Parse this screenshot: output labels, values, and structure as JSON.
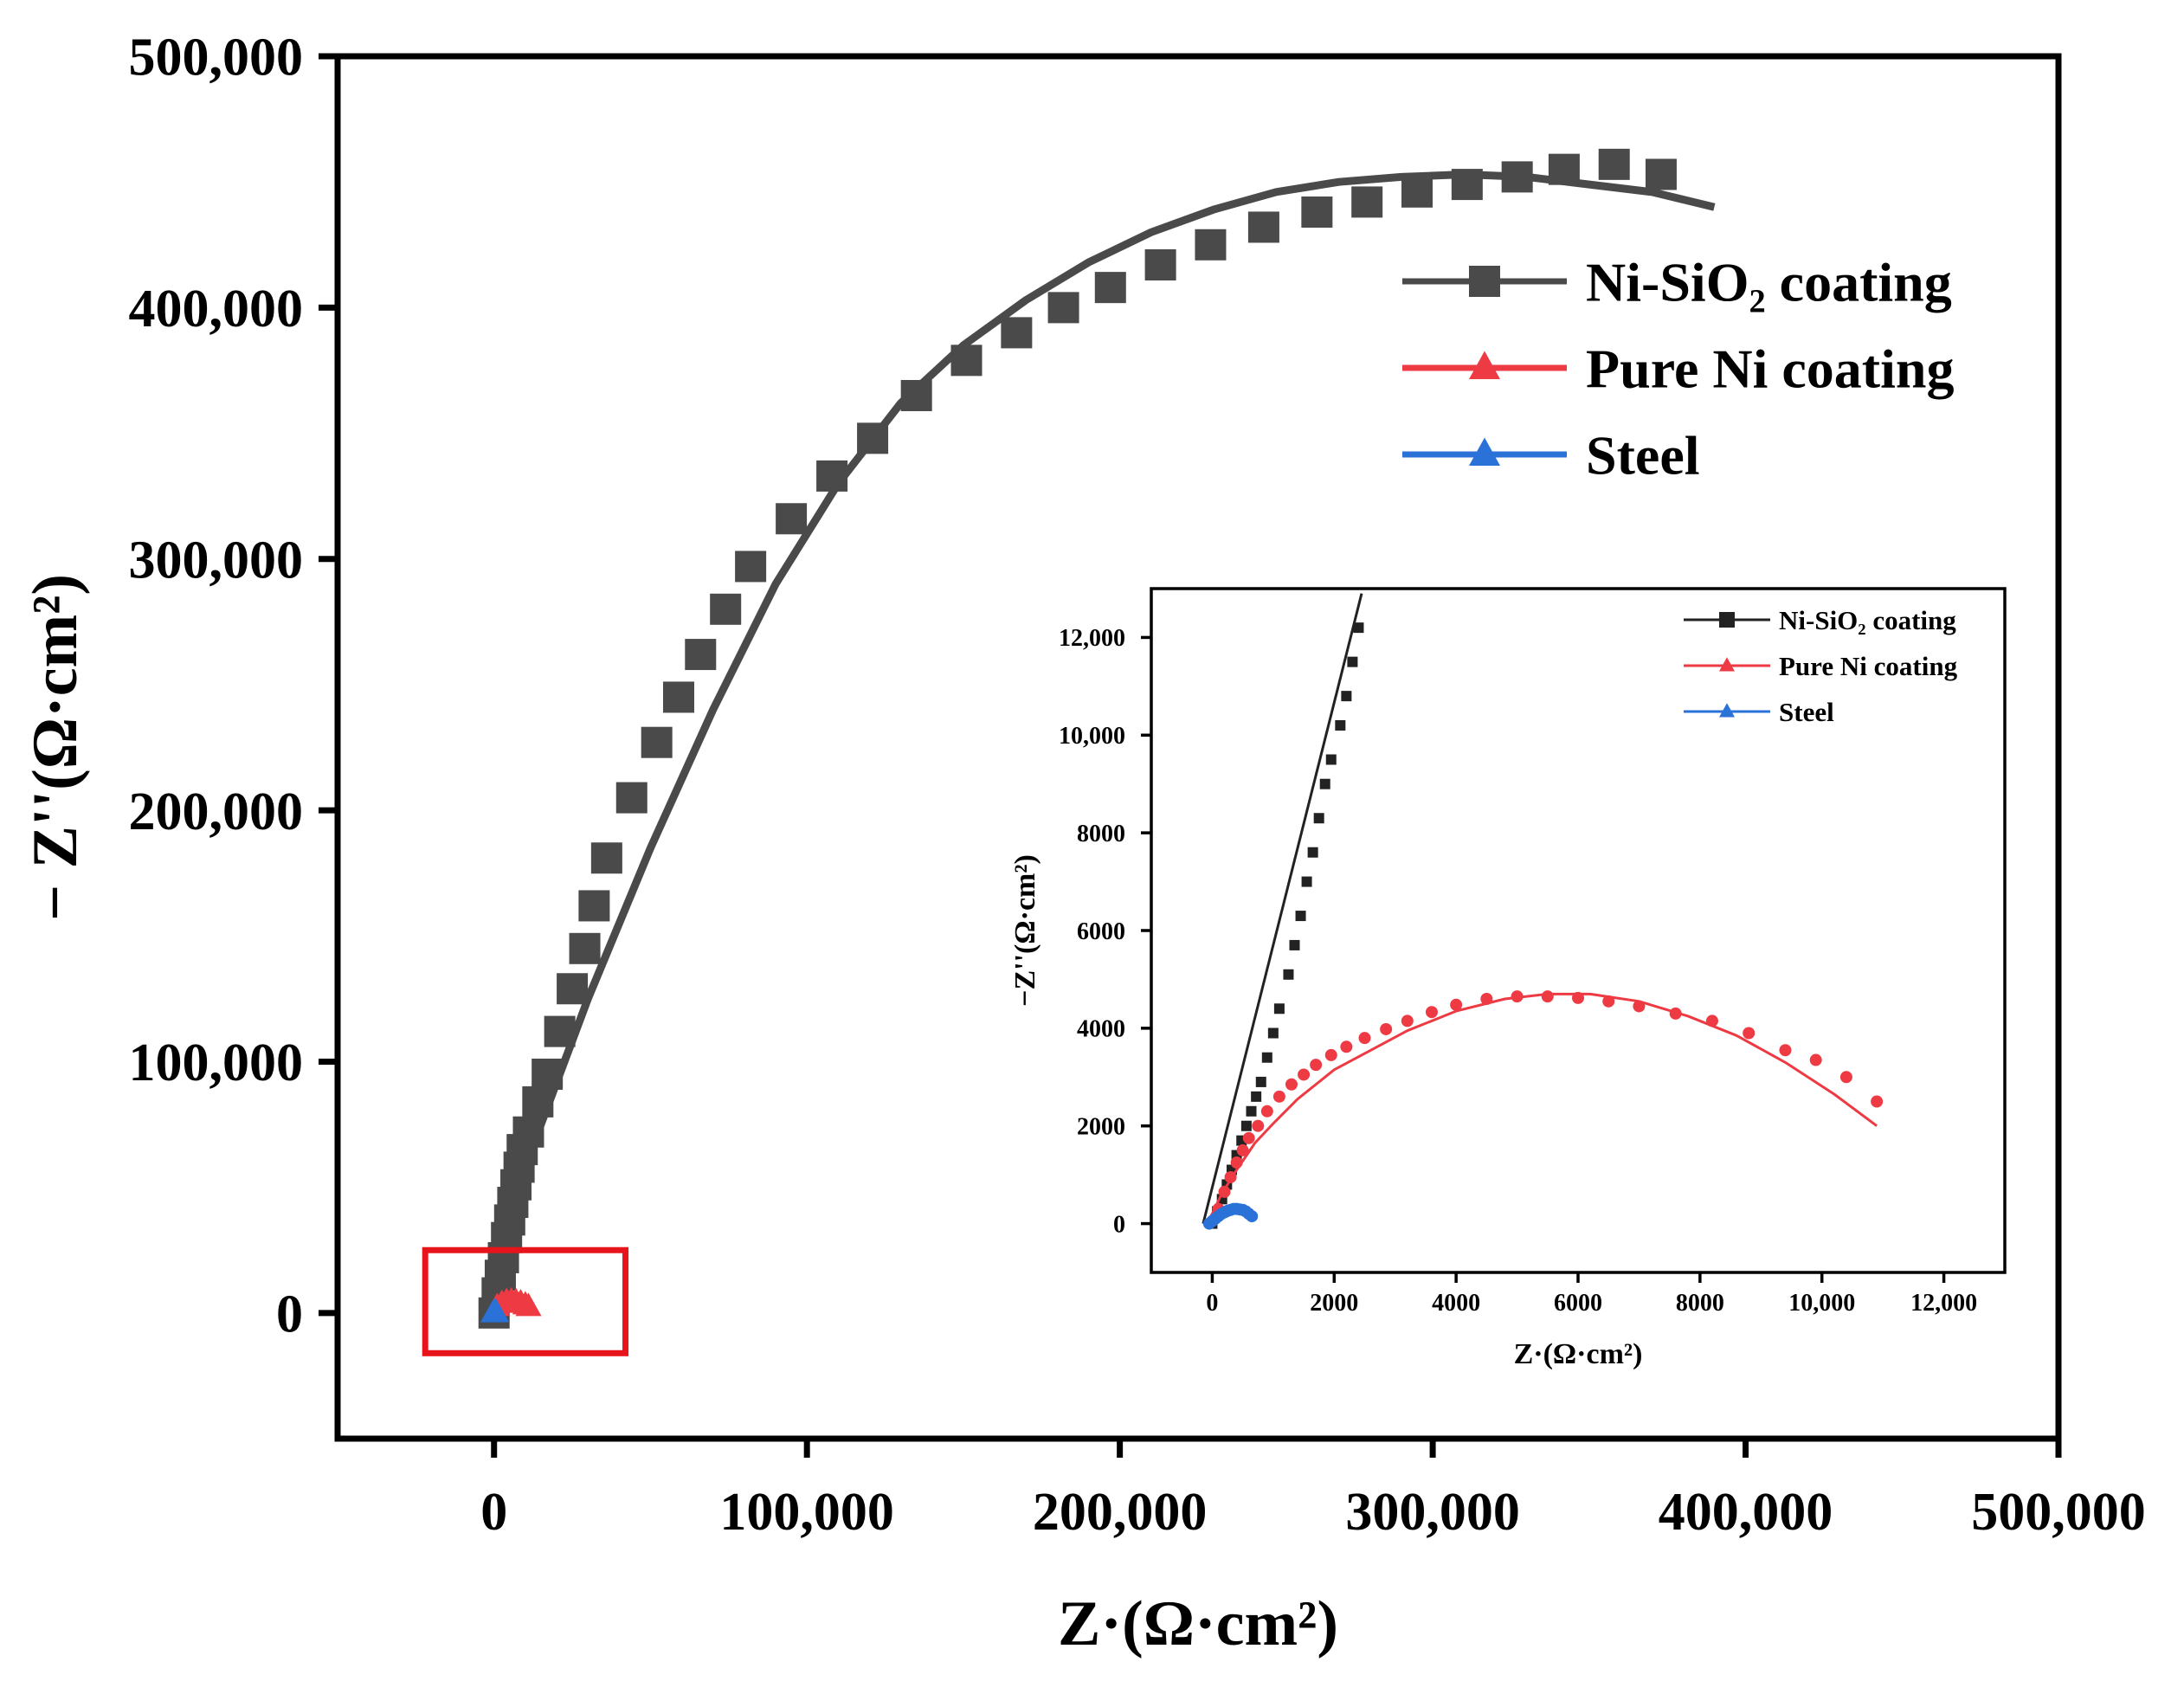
{
  "colors": {
    "ni_sio2": "#4a4a4a",
    "ni_sio2_inset": "#222222",
    "pure_ni": "#ee3a43",
    "steel": "#2a72d8",
    "zoom_box": "#e8141c",
    "axis": "#000000"
  },
  "chart_data": [
    {
      "id": "main",
      "type": "scatter",
      "xlabel": "Z·(Ω·cm²)",
      "ylabel": "− Z''(Ω·cm²)",
      "xlim": [
        -50000,
        500000
      ],
      "ylim": [
        -50000,
        500000
      ],
      "xticks": [
        0,
        100000,
        200000,
        300000,
        400000,
        500000
      ],
      "xtick_labels": [
        "0",
        "100,000",
        "200,000",
        "300,000",
        "400,000",
        "500,000"
      ],
      "yticks": [
        0,
        100000,
        200000,
        300000,
        400000,
        500000
      ],
      "ytick_labels": [
        "0",
        "100,000",
        "200,000",
        "300,000",
        "400,000",
        "500,000"
      ],
      "legend_position": "top-right",
      "zoom_box": {
        "x": [
          -22000,
          42000
        ],
        "y": [
          -16000,
          25000
        ]
      },
      "series": [
        {
          "name": "Ni-SiO₂ coating",
          "marker": "square",
          "color_key": "ni_sio2",
          "points": [
            [
              0,
              0
            ],
            [
              1000,
              8000
            ],
            [
              2000,
              15000
            ],
            [
              3000,
              22000
            ],
            [
              4000,
              30000
            ],
            [
              5000,
              37000
            ],
            [
              6000,
              44000
            ],
            [
              7000,
              51000
            ],
            [
              8000,
              58000
            ],
            [
              9000,
              65000
            ],
            [
              11000,
              72000
            ],
            [
              14000,
              84000
            ],
            [
              17000,
              95000
            ],
            [
              21000,
              112000
            ],
            [
              25000,
              129000
            ],
            [
              29000,
              145000
            ],
            [
              32000,
              162000
            ],
            [
              36000,
              181000
            ],
            [
              44000,
              205000
            ],
            [
              52000,
              227000
            ],
            [
              59000,
              245000
            ],
            [
              66000,
              262000
            ],
            [
              74000,
              280000
            ],
            [
              82000,
              297000
            ],
            [
              95000,
              316000
            ],
            [
              108000,
              333000
            ],
            [
              121000,
              348000
            ],
            [
              135000,
              365000
            ],
            [
              151000,
              379000
            ],
            [
              167000,
              390000
            ],
            [
              182000,
              400000
            ],
            [
              197000,
              408000
            ],
            [
              213000,
              417000
            ],
            [
              229000,
              425000
            ],
            [
              246000,
              432000
            ],
            [
              263000,
              438000
            ],
            [
              279000,
              442000
            ],
            [
              295000,
              446000
            ],
            [
              311000,
              449000
            ],
            [
              327000,
              452000
            ],
            [
              342000,
              455000
            ],
            [
              358000,
              457000
            ],
            [
              373000,
              453000
            ]
          ],
          "fit_curve": [
            [
              -3000,
              0
            ],
            [
              2000,
              20000
            ],
            [
              7000,
              45000
            ],
            [
              15000,
              75000
            ],
            [
              30000,
              125000
            ],
            [
              50000,
              185000
            ],
            [
              70000,
              240000
            ],
            [
              90000,
              290000
            ],
            [
              110000,
              330000
            ],
            [
              130000,
              362000
            ],
            [
              150000,
              385000
            ],
            [
              170000,
              403000
            ],
            [
              190000,
              418000
            ],
            [
              210000,
              430000
            ],
            [
              230000,
              439000
            ],
            [
              250000,
              446000
            ],
            [
              270000,
              450000
            ],
            [
              290000,
              452000
            ],
            [
              310000,
              453000
            ],
            [
              330000,
              452000
            ],
            [
              350000,
              449000
            ],
            [
              370000,
              446000
            ],
            [
              390000,
              440000
            ]
          ]
        },
        {
          "name": "Pure Ni coating",
          "marker": "triangle",
          "color_key": "pure_ni",
          "points": [
            [
              200,
              500
            ],
            [
              1000,
              2500
            ],
            [
              2500,
              3800
            ],
            [
              4000,
              4500
            ],
            [
              5500,
              4700
            ],
            [
              7000,
              4500
            ],
            [
              8500,
              4000
            ],
            [
              10000,
              3200
            ],
            [
              11000,
              2500
            ]
          ]
        },
        {
          "name": "Steel",
          "marker": "triangle",
          "color_key": "steel",
          "points": [
            [
              -200,
              0
            ],
            [
              100,
              100
            ],
            [
              200,
              200
            ],
            [
              350,
              300
            ],
            [
              500,
              300
            ],
            [
              600,
              200
            ],
            [
              650,
              100
            ]
          ]
        }
      ]
    },
    {
      "id": "inset",
      "type": "scatter",
      "xlabel": "Z·(Ω·cm²)",
      "ylabel": "−Z''(Ω·cm²)",
      "xlim": [
        -1000,
        13000
      ],
      "ylim": [
        -1000,
        13000
      ],
      "xticks": [
        0,
        2000,
        4000,
        6000,
        8000,
        10000,
        12000
      ],
      "xtick_labels": [
        "0",
        "2000",
        "4000",
        "6000",
        "8000",
        "10,000",
        "12,000"
      ],
      "yticks": [
        0,
        2000,
        4000,
        6000,
        8000,
        10000,
        12000
      ],
      "ytick_labels": [
        "0",
        "2000",
        "4000",
        "6000",
        "8000",
        "10,000",
        "12,000"
      ],
      "legend_position": "top-right",
      "series": [
        {
          "name": "Ni-SiO₂ coating",
          "marker": "square",
          "color_key": "ni_sio2_inset",
          "points": [
            [
              0,
              0
            ],
            [
              80,
              250
            ],
            [
              160,
              500
            ],
            [
              240,
              800
            ],
            [
              320,
              1100
            ],
            [
              400,
              1400
            ],
            [
              480,
              1700
            ],
            [
              560,
              2000
            ],
            [
              640,
              2300
            ],
            [
              720,
              2600
            ],
            [
              800,
              2900
            ],
            [
              900,
              3400
            ],
            [
              1000,
              3900
            ],
            [
              1100,
              4400
            ],
            [
              1250,
              5100
            ],
            [
              1350,
              5700
            ],
            [
              1450,
              6300
            ],
            [
              1550,
              7000
            ],
            [
              1650,
              7600
            ],
            [
              1750,
              8300
            ],
            [
              1850,
              9000
            ],
            [
              1950,
              9500
            ],
            [
              2100,
              10200
            ],
            [
              2200,
              10800
            ],
            [
              2300,
              11500
            ],
            [
              2400,
              12200
            ]
          ],
          "fit_curve": [
            [
              -150,
              0
            ],
            [
              2450,
              12900
            ]
          ]
        },
        {
          "name": "Pure Ni coating",
          "marker": "circle",
          "color_key": "pure_ni",
          "points": [
            [
              100,
              300
            ],
            [
              200,
              650
            ],
            [
              300,
              950
            ],
            [
              400,
              1250
            ],
            [
              500,
              1500
            ],
            [
              600,
              1750
            ],
            [
              750,
              2000
            ],
            [
              900,
              2300
            ],
            [
              1100,
              2600
            ],
            [
              1300,
              2850
            ],
            [
              1500,
              3050
            ],
            [
              1700,
              3250
            ],
            [
              1950,
              3450
            ],
            [
              2200,
              3620
            ],
            [
              2500,
              3800
            ],
            [
              2850,
              3980
            ],
            [
              3200,
              4150
            ],
            [
              3600,
              4330
            ],
            [
              4000,
              4480
            ],
            [
              4500,
              4600
            ],
            [
              5000,
              4650
            ],
            [
              5500,
              4650
            ],
            [
              6000,
              4620
            ],
            [
              6500,
              4550
            ],
            [
              7000,
              4450
            ],
            [
              7600,
              4300
            ],
            [
              8200,
              4150
            ],
            [
              8800,
              3900
            ],
            [
              9400,
              3550
            ],
            [
              9900,
              3350
            ],
            [
              10400,
              3000
            ],
            [
              10900,
              2500
            ]
          ],
          "fit_curve": [
            [
              -100,
              0
            ],
            [
              0,
              200
            ],
            [
              150,
              600
            ],
            [
              400,
              1100
            ],
            [
              700,
              1650
            ],
            [
              1000,
              2050
            ],
            [
              1400,
              2550
            ],
            [
              2000,
              3150
            ],
            [
              2600,
              3550
            ],
            [
              3200,
              3950
            ],
            [
              4000,
              4350
            ],
            [
              4800,
              4600
            ],
            [
              5500,
              4700
            ],
            [
              6200,
              4700
            ],
            [
              7000,
              4550
            ],
            [
              7800,
              4250
            ],
            [
              8600,
              3850
            ],
            [
              9400,
              3300
            ],
            [
              10200,
              2650
            ],
            [
              10900,
              2000
            ]
          ]
        },
        {
          "name": "Steel",
          "marker": "circle",
          "color_key": "steel",
          "points": [
            [
              -50,
              0
            ],
            [
              0,
              50
            ],
            [
              50,
              100
            ],
            [
              100,
              150
            ],
            [
              150,
              200
            ],
            [
              200,
              230
            ],
            [
              250,
              260
            ],
            [
              300,
              280
            ],
            [
              350,
              300
            ],
            [
              400,
              300
            ],
            [
              450,
              290
            ],
            [
              500,
              280
            ],
            [
              550,
              250
            ],
            [
              600,
              200
            ],
            [
              650,
              150
            ]
          ],
          "fit_curve": [
            [
              -100,
              0
            ],
            [
              0,
              120
            ],
            [
              100,
              200
            ],
            [
              200,
              260
            ],
            [
              300,
              290
            ],
            [
              400,
              300
            ],
            [
              500,
              280
            ],
            [
              600,
              210
            ],
            [
              650,
              150
            ]
          ]
        }
      ]
    }
  ]
}
